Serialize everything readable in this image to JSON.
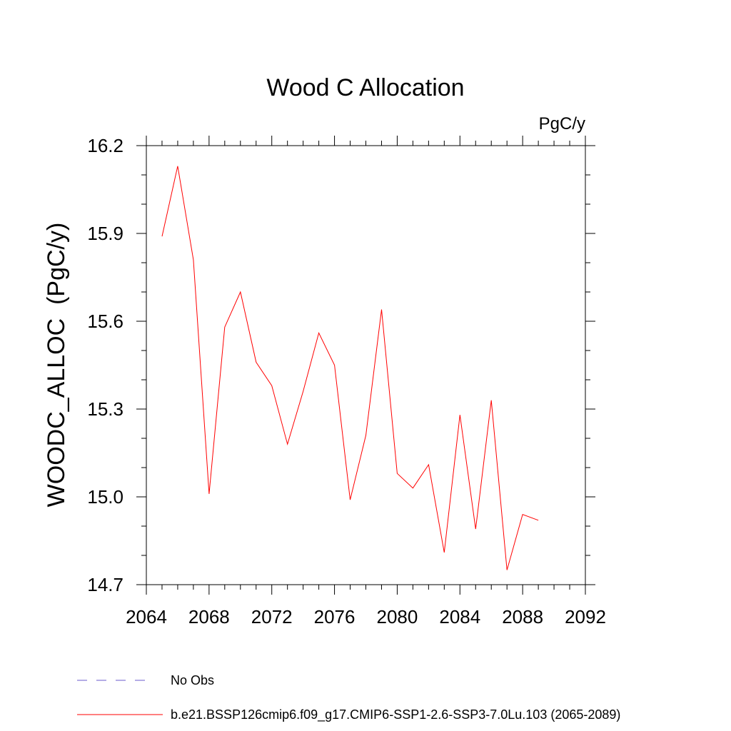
{
  "chart_data": {
    "type": "line",
    "title": "Wood C Allocation",
    "units_label": "PgC/y",
    "xlabel": "",
    "ylabel": "WOODC_ALLOC  (PgC/y)",
    "xlim": [
      2064,
      2092
    ],
    "ylim": [
      14.7,
      16.2
    ],
    "x_ticks": [
      2064,
      2068,
      2072,
      2076,
      2080,
      2084,
      2088,
      2092
    ],
    "x_tick_labels": [
      "2064",
      "2068",
      "2072",
      "2076",
      "2080",
      "2084",
      "2088",
      "2092"
    ],
    "y_ticks": [
      14.7,
      15.0,
      15.3,
      15.6,
      15.9,
      16.2
    ],
    "y_tick_labels": [
      "14.7",
      "15.0",
      "15.3",
      "15.6",
      "15.9",
      "16.2"
    ],
    "grid": false,
    "series": [
      {
        "name": "b.e21.BSSP126cmip6.f09_g17.CMIP6-SSP1-2.6-SSP3-7.0Lu.103 (2065-2089)",
        "color": "#ff0000",
        "x": [
          2065,
          2066,
          2067,
          2068,
          2069,
          2070,
          2071,
          2072,
          2073,
          2074,
          2075,
          2076,
          2077,
          2078,
          2079,
          2080,
          2081,
          2082,
          2083,
          2084,
          2085,
          2086,
          2087,
          2088,
          2089
        ],
        "values": [
          15.89,
          16.13,
          15.81,
          15.01,
          15.58,
          15.7,
          15.46,
          15.38,
          15.18,
          15.36,
          15.56,
          15.45,
          14.99,
          15.21,
          15.64,
          15.08,
          15.03,
          15.11,
          14.81,
          15.28,
          14.89,
          15.33,
          14.75,
          14.94,
          14.92
        ]
      }
    ],
    "legend": {
      "placement": "bottom-left",
      "entries": [
        {
          "label": "No Obs",
          "style": "dashed",
          "color": "#6a5acd"
        },
        {
          "label": "b.e21.BSSP126cmip6.f09_g17.CMIP6-SSP1-2.6-SSP3-7.0Lu.103 (2065-2089)",
          "style": "solid",
          "color": "#ff0000"
        }
      ]
    }
  }
}
